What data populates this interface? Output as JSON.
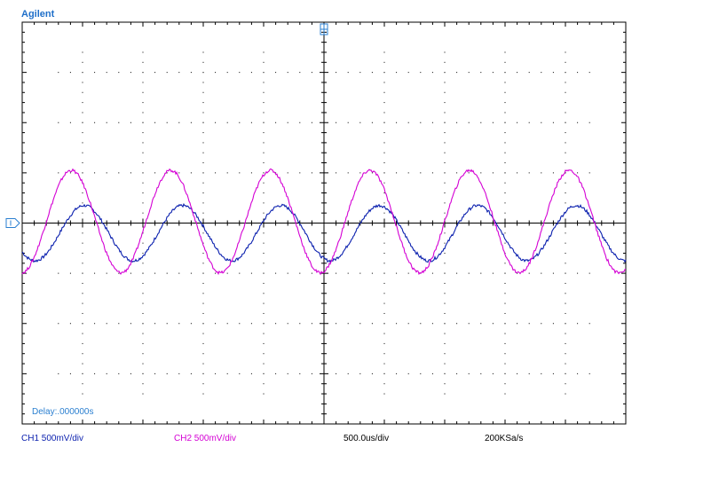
{
  "brand": "Agilent",
  "delay_text": "Delay:.000000s",
  "colors": {
    "ch1": "#0a1fae",
    "ch2": "#d400d4",
    "grid": "#000000",
    "brand": "#1f6fc9",
    "delay": "#2a7fd0",
    "markers": "#2a7fd0"
  },
  "status_bar": {
    "ch1": "CH1 500mV/div",
    "ch2": "CH2 500mV/div",
    "timebase": "500.0us/div",
    "sample_rate": "200KSa/s"
  },
  "chart_data": {
    "type": "line",
    "grid": true,
    "divisions": {
      "x": 10,
      "y": 8
    },
    "x_unit": "div",
    "y_unit": "div",
    "xlim": [
      -5,
      5
    ],
    "ylim": [
      -4,
      4
    ],
    "series": [
      {
        "name": "CH1",
        "description": "sine, amplitude 0.55 div, period 1.63 div, phase lagging CH2",
        "amplitude": 0.55,
        "period": 1.63,
        "offset": -0.2,
        "x0": -4.38
      },
      {
        "name": "CH2",
        "description": "sine, amplitude 1.02 div, period 1.65 div",
        "amplitude": 1.02,
        "period": 1.65,
        "offset": 0.03,
        "x0": -4.6
      }
    ]
  }
}
